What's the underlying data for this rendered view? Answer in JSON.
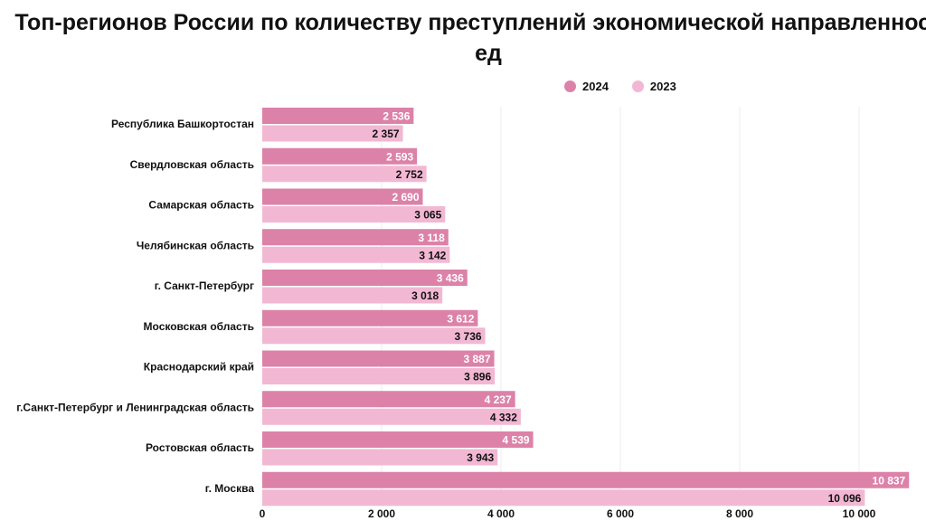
{
  "chart_data": {
    "type": "bar",
    "orientation": "horizontal",
    "title": "Топ-регионов России по количеству преступлений экономической направленности, ед",
    "categories": [
      "Республика Башкортостан",
      "Свердловская область",
      "Самарская область",
      "Челябинская область",
      "г. Санкт-Петербург",
      "Московская область",
      "Краснодарский край",
      "г.Санкт-Петербург и Ленинградская область",
      "Ростовская область",
      "г. Москва"
    ],
    "series": [
      {
        "name": "2024",
        "color": "#dc82a8",
        "label_color": "#ffffff",
        "values": [
          2536,
          2593,
          2690,
          3118,
          3436,
          3612,
          3887,
          4237,
          4539,
          10837
        ]
      },
      {
        "name": "2023",
        "color": "#f2b8d3",
        "label_color": "#111111",
        "values": [
          2357,
          2752,
          3065,
          3142,
          3018,
          3736,
          3896,
          4332,
          3943,
          10096
        ]
      }
    ],
    "xlim": [
      0,
      10837
    ],
    "xticks": [
      0,
      2000,
      4000,
      6000,
      8000,
      10000
    ],
    "xtick_labels": [
      "0",
      "2 000",
      "4 000",
      "6 000",
      "8 000",
      "10 000"
    ],
    "grid": true,
    "legend_position": "top-right"
  }
}
